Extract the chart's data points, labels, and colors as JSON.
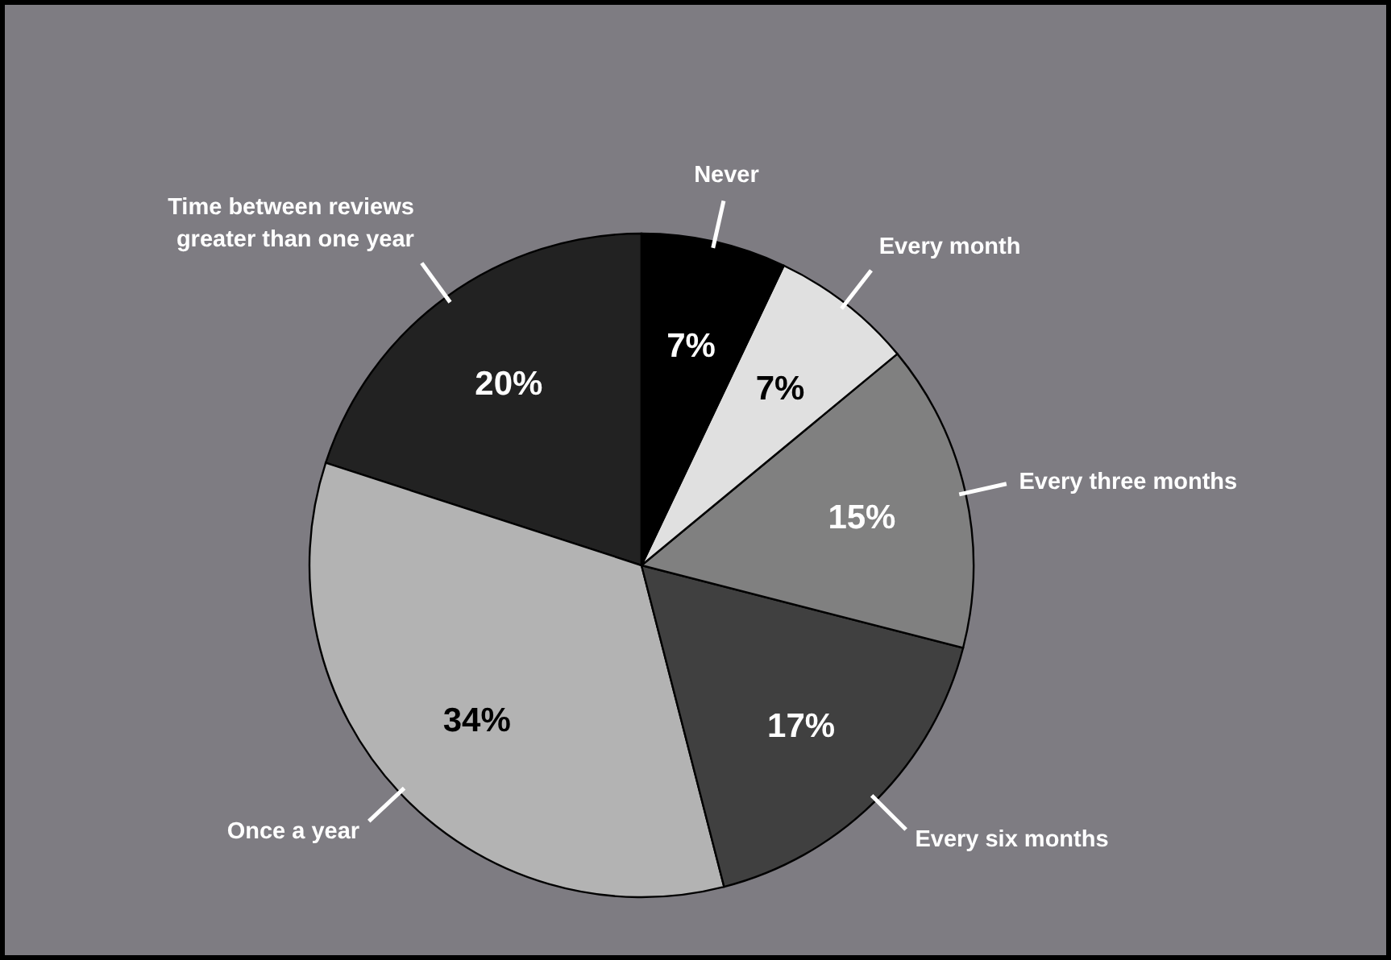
{
  "chart_data": {
    "type": "pie",
    "categories": [
      "Never",
      "Every month",
      "Every three months",
      "Every six months",
      "Once a year",
      "Time between reviews greater than one year"
    ],
    "values": [
      7.05,
      6.95,
      15,
      17,
      34,
      20
    ],
    "colors": [
      "#000000",
      "#e0e0e0",
      "#808080",
      "#404040",
      "#b3b3b3",
      "#222222"
    ],
    "value_labels": [
      "7%",
      "7%",
      "15%",
      "17%",
      "34%",
      "20%"
    ]
  }
}
